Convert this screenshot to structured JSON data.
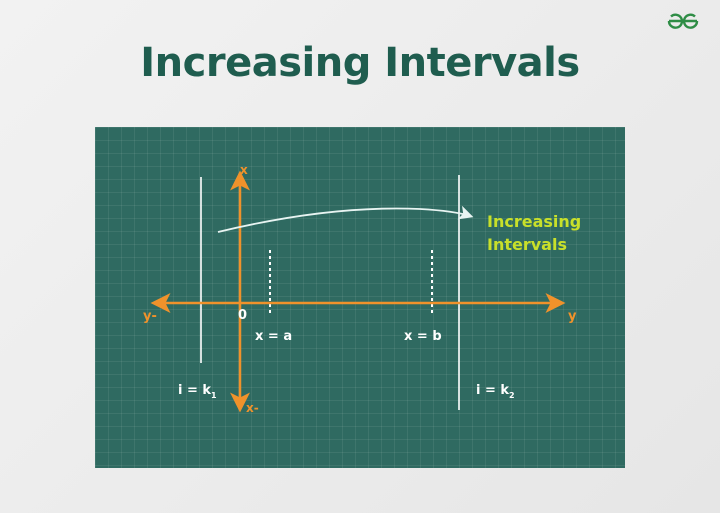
{
  "title": "Increasing Intervals",
  "logo": {
    "text": "GfG",
    "color": "#2f8d46"
  },
  "diagram": {
    "annotation": [
      "Increasing",
      "Intervals"
    ],
    "axis_labels": {
      "x_pos": "x",
      "x_neg": "x-",
      "y_pos": "y",
      "y_neg": "y-",
      "origin": "0"
    },
    "markers": {
      "a": "x = a",
      "b": "x = b"
    },
    "bounds": {
      "k1": "i = k",
      "k1_sub": "1",
      "k2": "i = k",
      "k2_sub": "2"
    },
    "colors": {
      "board": "#2f6a61",
      "axis": "#f0922b",
      "annotation": "#c8e02a",
      "lines": "#ffffff",
      "title": "#1f5d4f"
    }
  }
}
